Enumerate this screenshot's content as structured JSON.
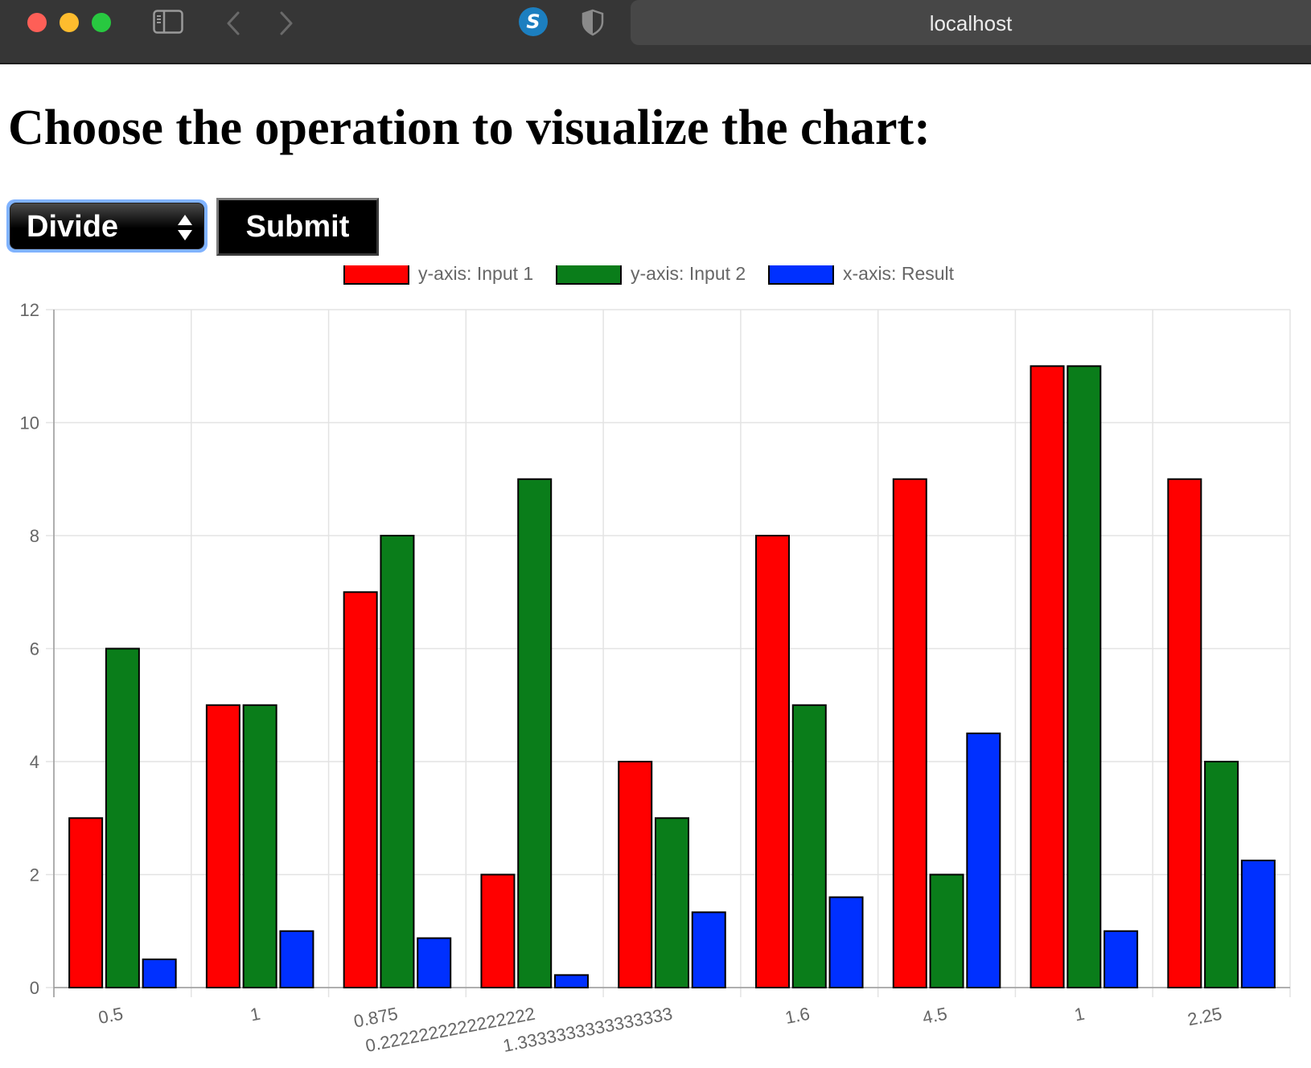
{
  "browser": {
    "url": "localhost",
    "icons": [
      "sidebar-icon",
      "back-arrow-icon",
      "forward-arrow-icon",
      "extension-s-icon",
      "shield-icon"
    ],
    "extension_letter": "S"
  },
  "page": {
    "title": "Choose the operation to visualize the chart:",
    "operation_select": {
      "selected": "Divide"
    },
    "submit_label": "Submit"
  },
  "colors": {
    "input1": "#ff0000",
    "input2": "#0a7d1a",
    "result": "#0030ff",
    "border": "#000000",
    "grid": "#e3e3e3",
    "select_focus_ring": "#80b3ff"
  },
  "chart_data": {
    "type": "bar",
    "categories": [
      "0.5",
      "1",
      "0.875",
      "0.2222222222222222",
      "1.3333333333333333",
      "1.6",
      "4.5",
      "1",
      "2.25"
    ],
    "series": [
      {
        "name": "y-axis: Input 1",
        "values": [
          3,
          5,
          7,
          2,
          4,
          8,
          9,
          11,
          9
        ]
      },
      {
        "name": "y-axis: Input 2",
        "values": [
          6,
          5,
          8,
          9,
          3,
          5,
          2,
          11,
          4
        ]
      },
      {
        "name": "x-axis: Result",
        "values": [
          0.5,
          1,
          0.875,
          0.2222222222222222,
          1.3333333333333333,
          1.6,
          4.5,
          1,
          2.25
        ]
      }
    ],
    "ylim": [
      0,
      12
    ],
    "yticks": [
      "0",
      "2",
      "4",
      "6",
      "8",
      "10",
      "12"
    ],
    "grid": true,
    "legend_position": "top"
  }
}
